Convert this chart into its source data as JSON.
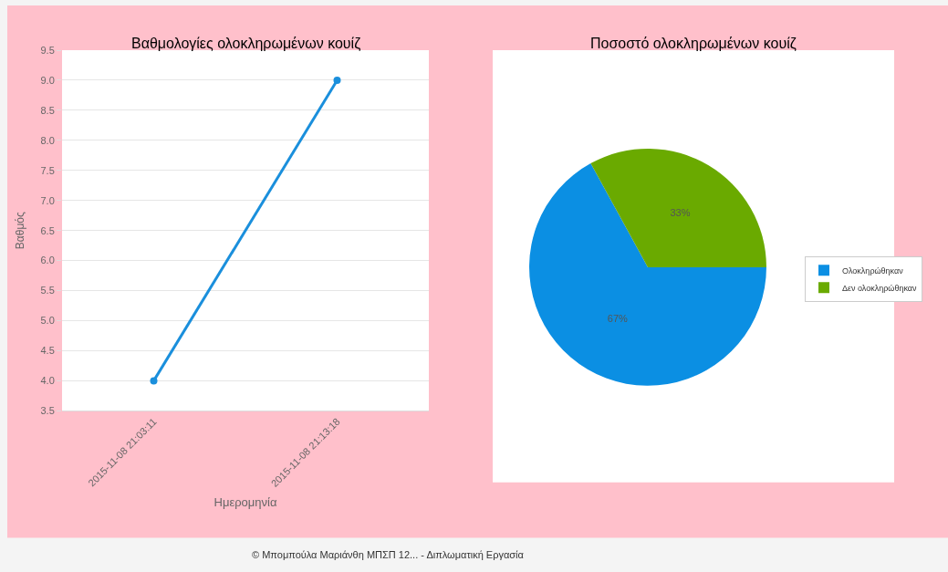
{
  "chart_data": [
    {
      "type": "line",
      "title": "Βαθμολογίες ολοκληρωμένων κουίζ",
      "xlabel": "Ημερομηνία",
      "ylabel": "Βαθμός",
      "categories": [
        "2015-11-08 21:03:11",
        "2015-11-08 21:13:18"
      ],
      "series": [
        {
          "color": "#1a8fdc",
          "values": [
            4.0,
            9.0
          ]
        }
      ],
      "ylim": [
        3.5,
        9.5
      ],
      "yticks": [
        {
          "value": 3.5,
          "label": "3.5"
        },
        {
          "value": 4,
          "label": "4.0"
        },
        {
          "value": 4.5,
          "label": "4.5"
        },
        {
          "value": 5,
          "label": "5.0"
        },
        {
          "value": 5.5,
          "label": "5.5"
        },
        {
          "value": 6,
          "label": "6.0"
        },
        {
          "value": 6.5,
          "label": "6.5"
        },
        {
          "value": 7,
          "label": "7.0"
        },
        {
          "value": 7.5,
          "label": "7.5"
        },
        {
          "value": 8,
          "label": "8.0"
        },
        {
          "value": 8.5,
          "label": "8.5"
        },
        {
          "value": 9,
          "label": "9.0"
        },
        {
          "value": 9.5,
          "label": "9.5"
        }
      ],
      "grid": "y",
      "marker": "circle",
      "line_style": "solid",
      "annotations": [
        "© Μπομπούλα Μαριάνθη ΜΠΣΠ 12... - Διπλωματική Εργασία"
      ]
    },
    {
      "type": "pie",
      "title": "Ποσοστό ολοκληρωμένων κουίζ",
      "categories": [
        "Ολοκληρώθηκαν",
        "Δεν ολοκληρώθηκαν"
      ],
      "values": [
        67,
        33
      ],
      "colors": [
        "#0b8fe3",
        "#6aaa00"
      ],
      "value_labels": [
        "67%",
        "33%"
      ],
      "legend": "right"
    }
  ]
}
